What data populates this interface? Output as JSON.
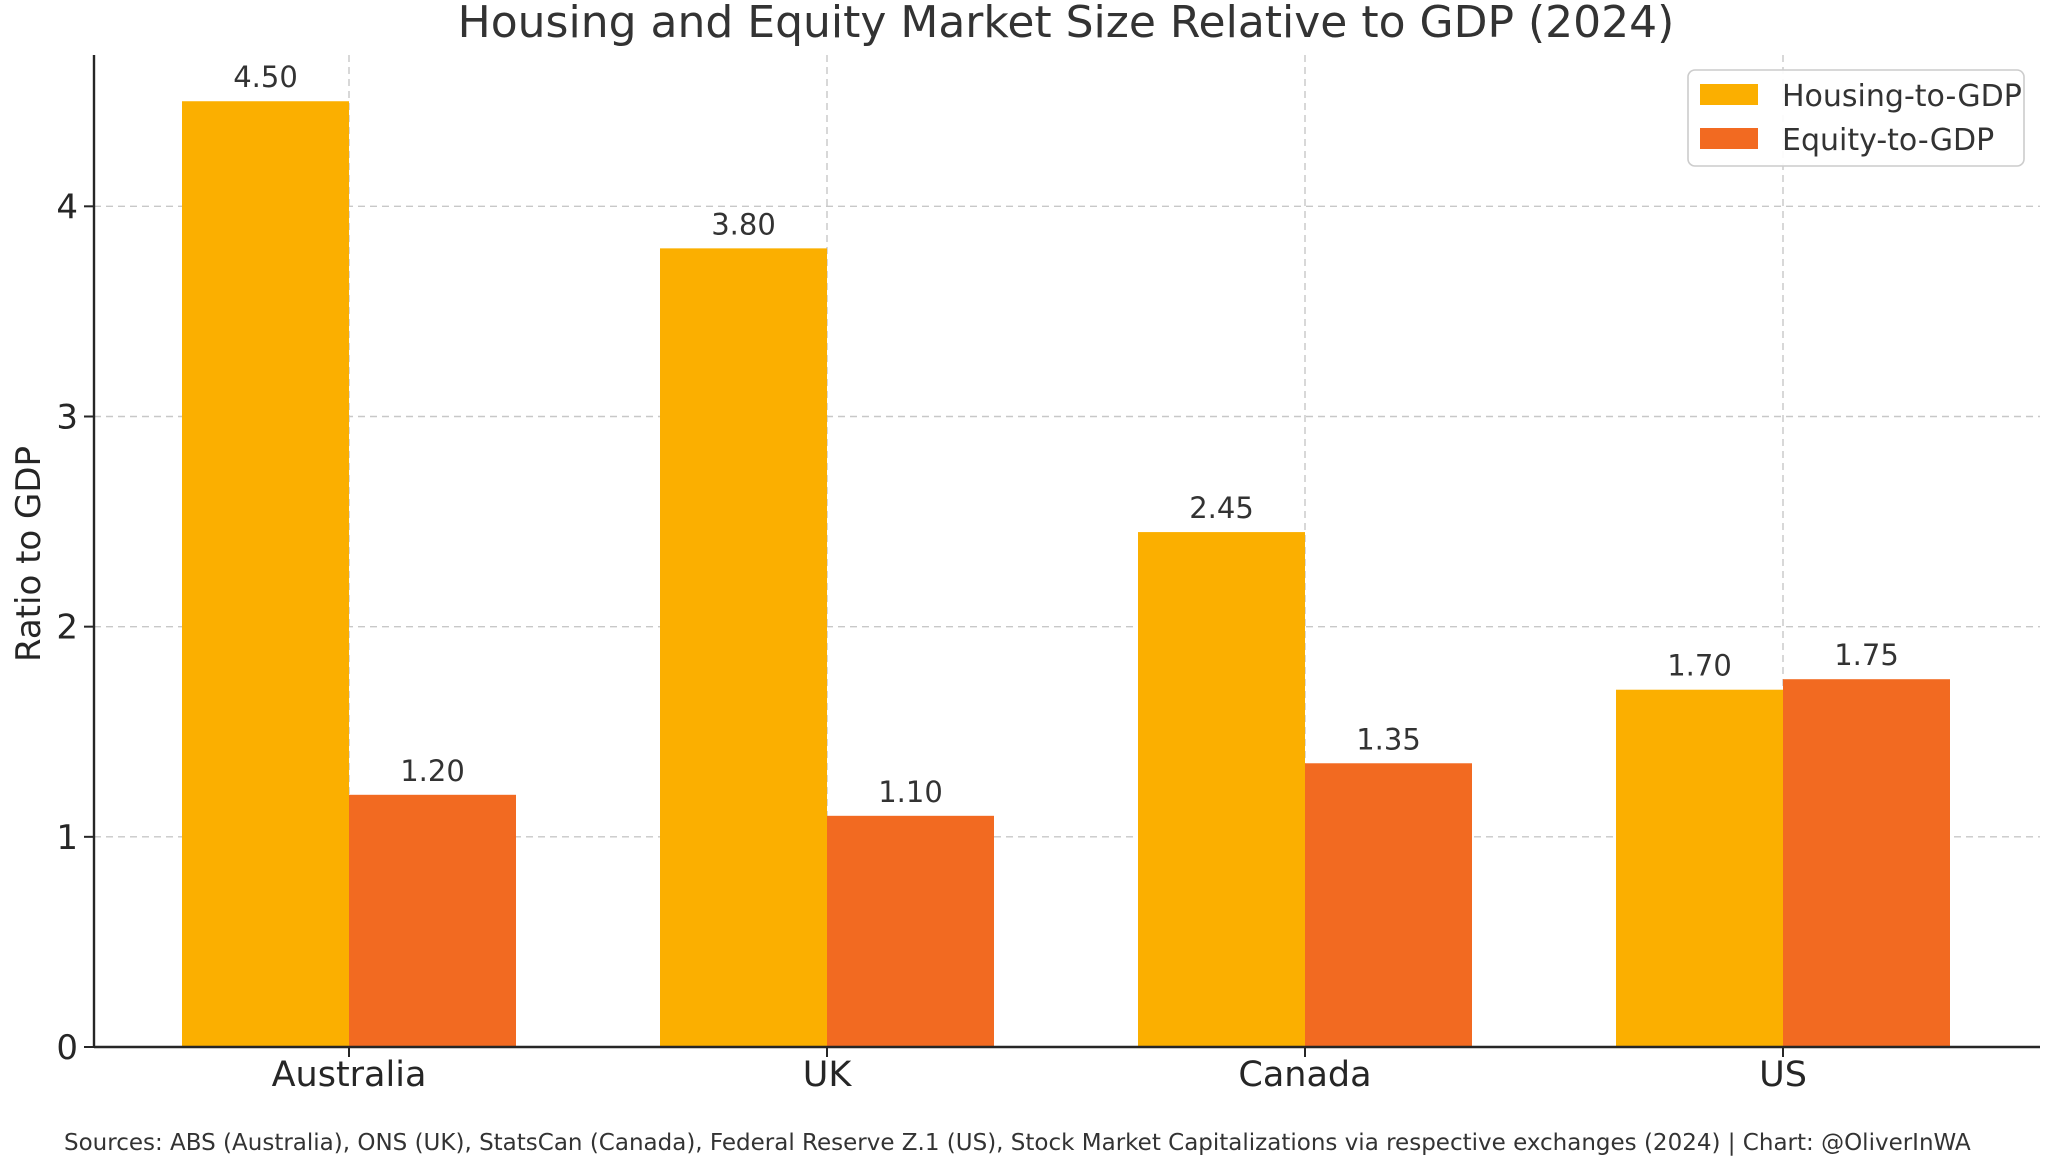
{
  "chart_data": {
    "type": "bar",
    "title": "Housing and Equity Market Size Relative to GDP (2024)",
    "xlabel": "",
    "ylabel": "Ratio to GDP",
    "ylim": [
      0,
      4.72
    ],
    "yticks": [
      0,
      1,
      2,
      3,
      4
    ],
    "grid": true,
    "legend_position": "top-right",
    "categories": [
      "Australia",
      "UK",
      "Canada",
      "US"
    ],
    "series": [
      {
        "name": "Housing-to-GDP",
        "color": "#FBAF00",
        "values": [
          4.5,
          3.8,
          2.45,
          1.7
        ],
        "labels": [
          "4.50",
          "3.80",
          "2.45",
          "1.70"
        ]
      },
      {
        "name": "Equity-to-GDP",
        "color": "#F26A21",
        "values": [
          1.2,
          1.1,
          1.35,
          1.75
        ],
        "labels": [
          "1.20",
          "1.10",
          "1.35",
          "1.75"
        ]
      }
    ],
    "footer": "Sources: ABS (Australia), ONS (UK), StatsCan (Canada), Federal Reserve Z.1 (US), Stock Market Capitalizations via respective exchanges (2024) | Chart: @OliverInWA"
  }
}
